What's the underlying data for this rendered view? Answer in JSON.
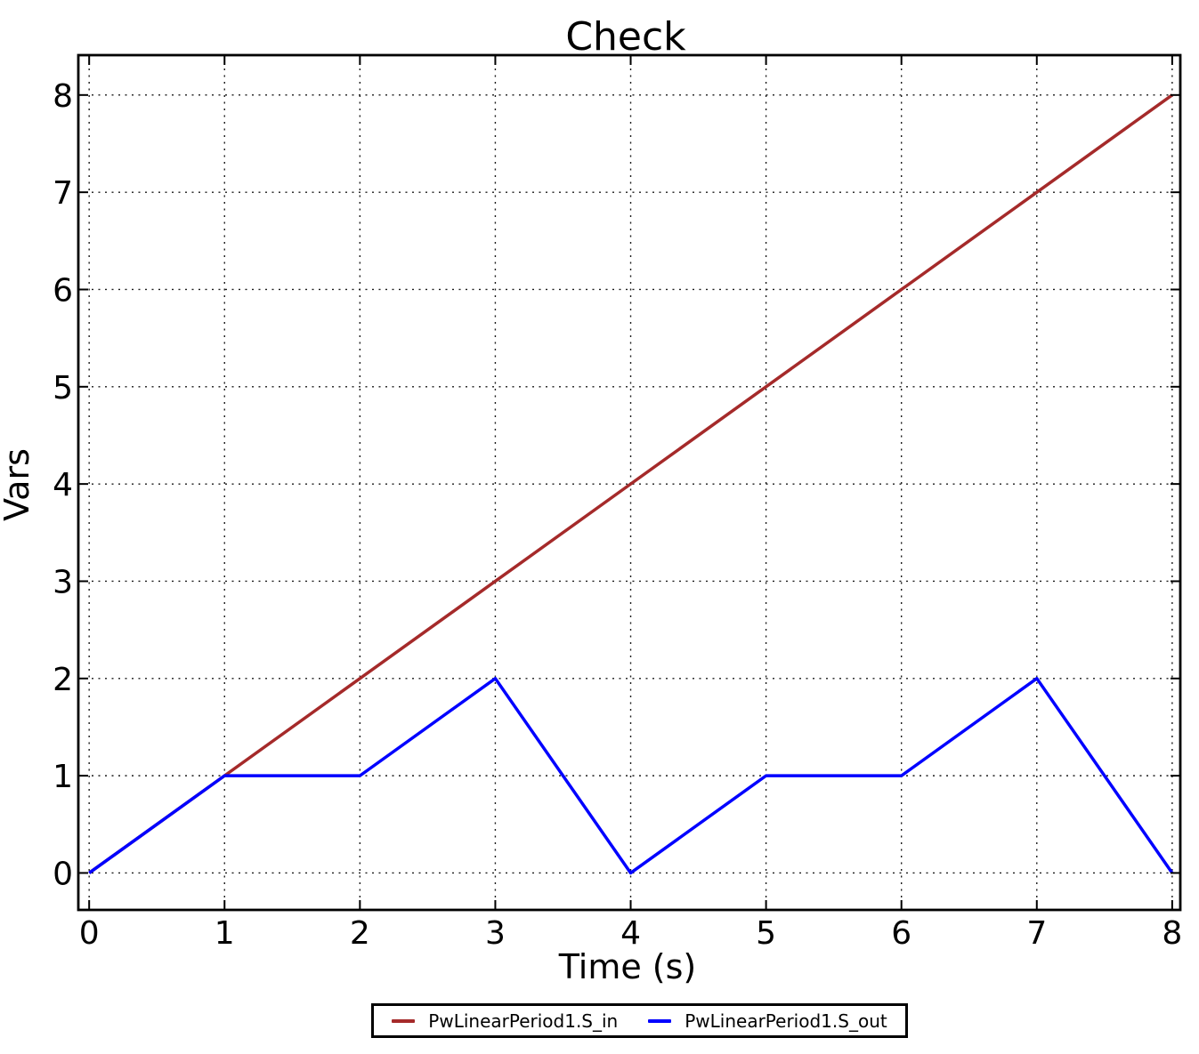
{
  "figure": {
    "title": "Check",
    "background_color": "#ffffff",
    "frame_color": "#000000",
    "grid_color": "#1a1a1a"
  },
  "chart_data": {
    "type": "line",
    "title": "Check",
    "xlabel": "Time (s)",
    "ylabel": "Vars",
    "xlim": [
      -0.08,
      8.06
    ],
    "ylim": [
      -0.38,
      8.41
    ],
    "xticks": [
      0,
      1,
      2,
      3,
      4,
      5,
      6,
      7,
      8
    ],
    "yticks": [
      0,
      1,
      2,
      3,
      4,
      5,
      6,
      7,
      8
    ],
    "grid": true,
    "grid_style": "dotted",
    "legend_position": "bottom-center",
    "series": [
      {
        "name": "PwLinearPeriod1.S_in",
        "color": "#a52a2a",
        "x": [
          0,
          1,
          2,
          3,
          4,
          5,
          6,
          7,
          8
        ],
        "y": [
          0,
          1,
          2,
          3,
          4,
          5,
          6,
          7,
          8
        ]
      },
      {
        "name": "PwLinearPeriod1.S_out",
        "color": "#0000ff",
        "x": [
          0,
          1,
          2,
          3,
          4,
          5,
          6,
          7,
          8
        ],
        "y": [
          0,
          1,
          1,
          2,
          0,
          1,
          1,
          2,
          0
        ]
      }
    ]
  }
}
